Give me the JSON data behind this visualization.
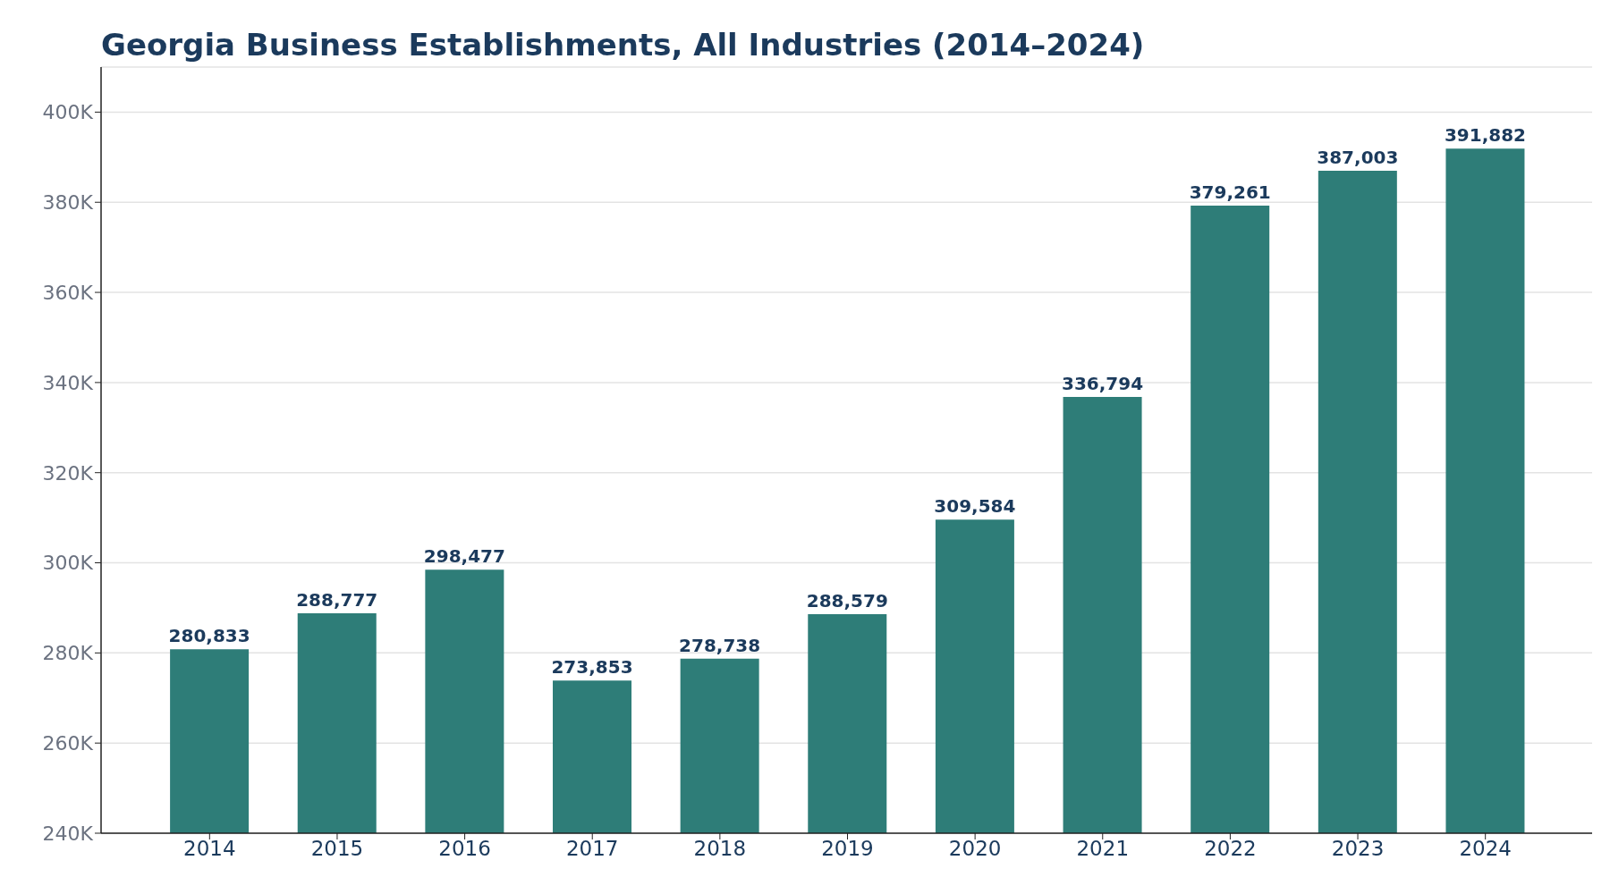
{
  "chart_data": {
    "type": "bar",
    "title": "Georgia Business Establishments, All Industries (2014–2024)",
    "categories": [
      "2014",
      "2015",
      "2016",
      "2017",
      "2018",
      "2019",
      "2020",
      "2021",
      "2022",
      "2023",
      "2024"
    ],
    "values": [
      280833,
      288777,
      298477,
      273853,
      278738,
      288579,
      309584,
      336794,
      379261,
      387003,
      391882
    ],
    "value_labels": [
      "280,833",
      "288,777",
      "298,477",
      "273,853",
      "278,738",
      "288,579",
      "309,584",
      "336,794",
      "379,261",
      "387,003",
      "391,882"
    ],
    "color": "#2e7d78",
    "ylim": [
      240000,
      410000
    ],
    "yticks": [
      {
        "value": 240000,
        "label": "240K"
      },
      {
        "value": 260000,
        "label": "260K"
      },
      {
        "value": 280000,
        "label": "280K"
      },
      {
        "value": 300000,
        "label": "300K"
      },
      {
        "value": 320000,
        "label": "320K"
      },
      {
        "value": 340000,
        "label": "340K"
      },
      {
        "value": 360000,
        "label": "360K"
      },
      {
        "value": 380000,
        "label": "380K"
      },
      {
        "value": 400000,
        "label": "400K"
      }
    ],
    "grid": "y"
  }
}
